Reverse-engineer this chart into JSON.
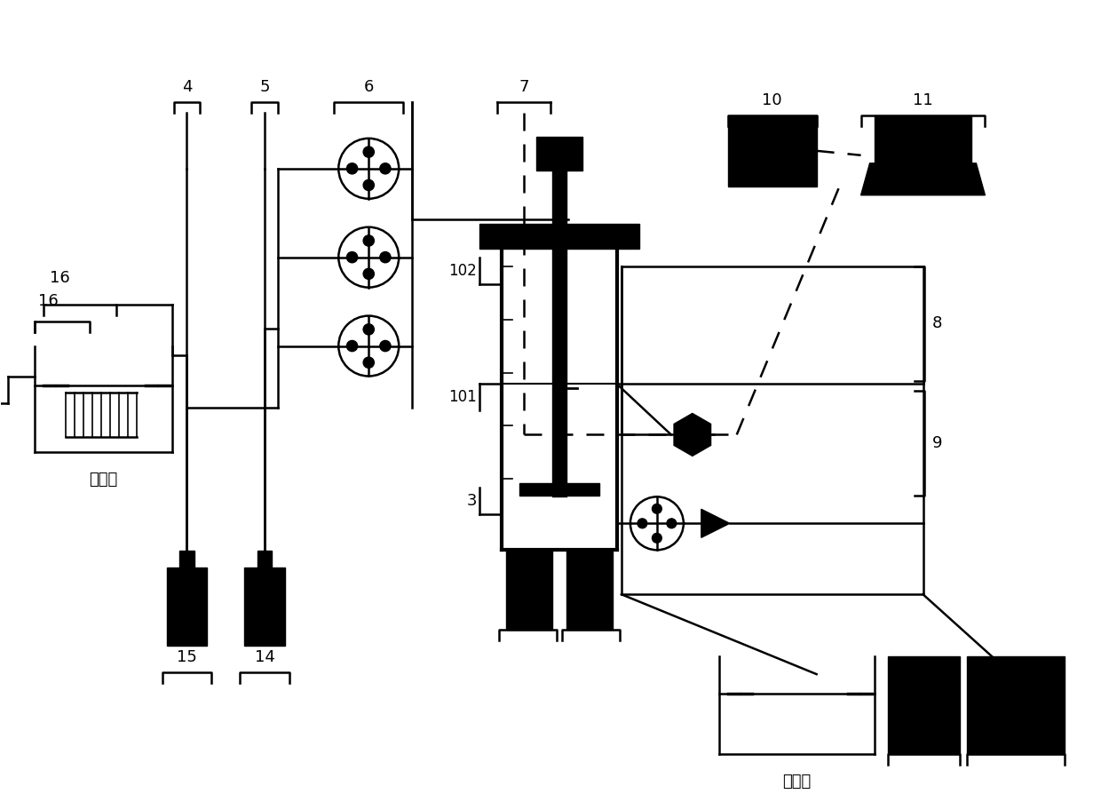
{
  "bg_color": "#ffffff",
  "line_color": "#000000",
  "label_fontsize": 13,
  "chinese_fontsize": 12,
  "fig_width": 12.4,
  "fig_height": 8.94,
  "dpi": 100
}
